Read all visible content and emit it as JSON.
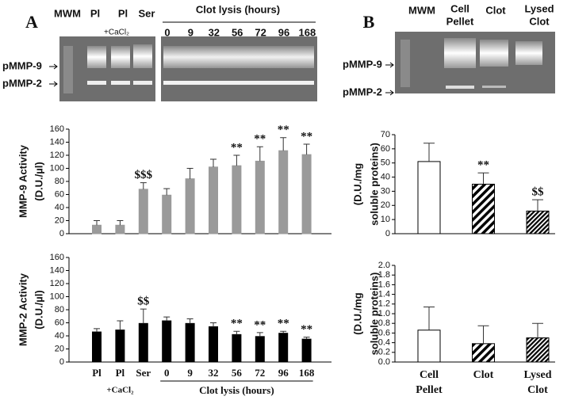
{
  "gels": {
    "panel_a": {
      "letter": "A",
      "lanes": [
        "MWM",
        "Pl",
        "Pl",
        "Ser"
      ],
      "treatment": "+CaCl₂",
      "group": "Clot lysis (hours)",
      "hours": [
        "0",
        "9",
        "32",
        "56",
        "72",
        "96",
        "168"
      ],
      "bands": [
        "pMMP-9",
        "pMMP-2"
      ]
    },
    "panel_b": {
      "letter": "B",
      "lanes": [
        "MWM",
        [
          "Cell",
          "Pellet"
        ],
        "Clot",
        [
          "Lysed",
          "Clot"
        ]
      ],
      "bands": [
        "pMMP-9",
        "pMMP-2"
      ]
    }
  },
  "chart_data": [
    {
      "type": "bar",
      "ylabel": [
        "MMP-9 Activity",
        "(D.U./µl)"
      ],
      "categories": [
        null,
        null,
        null,
        null,
        null,
        null,
        null,
        null,
        null,
        null
      ],
      "values": [
        13,
        13,
        68,
        59,
        84,
        102,
        104,
        111,
        127,
        121
      ],
      "errors": [
        7,
        7,
        10,
        10,
        16,
        12,
        16,
        22,
        20,
        16
      ],
      "markers": [
        null,
        null,
        "$$$",
        null,
        null,
        null,
        "**",
        "**",
        "**",
        "**"
      ],
      "color": "#9a9a9a",
      "ylim": [
        0,
        160
      ],
      "yticks": [
        0,
        20,
        40,
        60,
        80,
        100,
        120,
        140,
        160
      ]
    },
    {
      "type": "bar",
      "ylabel": [
        "MMP-2 Activity",
        "(D.U./µl)"
      ],
      "categories": [
        "Pl",
        "Pl",
        "Ser",
        "0",
        "9",
        "32",
        "56",
        "72",
        "96",
        "168"
      ],
      "group_labels": [
        "+CaCl₂",
        "Clot lysis (hours)"
      ],
      "values": [
        46,
        49,
        59,
        63,
        59,
        54,
        42,
        39,
        44,
        35
      ],
      "errors": [
        5,
        14,
        22,
        6,
        7,
        6,
        5,
        6,
        3,
        3
      ],
      "markers": [
        null,
        null,
        "$$",
        null,
        null,
        null,
        "**",
        "**",
        "**",
        "**"
      ],
      "color": "#000000",
      "ylim": [
        0,
        160
      ],
      "yticks": [
        0,
        20,
        40,
        60,
        80,
        100,
        120,
        140,
        160
      ]
    },
    {
      "type": "bar",
      "ylabel": [
        "(D.U./mg",
        "soluble proteins)"
      ],
      "categories": [
        null,
        null,
        null
      ],
      "values": [
        51,
        35,
        16
      ],
      "errors": [
        13,
        8,
        8
      ],
      "markers": [
        null,
        "**",
        "$$"
      ],
      "color": "#000000",
      "bar_fills": [
        "solid-white",
        "hatched",
        "hatched-dense"
      ],
      "ylim": [
        0,
        70
      ],
      "yticks": [
        0,
        10,
        20,
        30,
        40,
        50,
        60,
        70
      ]
    },
    {
      "type": "bar",
      "ylabel": [
        "(D.U./mg",
        "soluble proteins)"
      ],
      "categories": [
        [
          "Cell",
          "Pellet"
        ],
        [
          "Clot"
        ],
        [
          "Lysed",
          "Clot"
        ]
      ],
      "values": [
        0.66,
        0.38,
        0.5
      ],
      "errors": [
        0.48,
        0.37,
        0.3
      ],
      "color": "#000000",
      "bar_fills": [
        "solid-white",
        "hatched",
        "hatched-dense"
      ],
      "ylim": [
        0,
        2.0
      ],
      "yticks": [
        {
          "value": 0,
          "label": "0.0"
        },
        {
          "value": 0.2,
          "label": "0.2"
        },
        {
          "value": 0.4,
          "label": "0.4"
        },
        {
          "value": 0.6,
          "label": "0.6"
        },
        {
          "value": 0.8,
          "label": "0.8"
        },
        {
          "value": 1.0,
          "label": "1.0"
        },
        {
          "value": 1.2,
          "label": "1.2"
        },
        {
          "value": 1.4,
          "label": "1.4"
        },
        {
          "value": 1.6,
          "label": "1.6"
        },
        {
          "value": 1.8,
          "label": "1.8"
        },
        {
          "value": 2.0,
          "label": "2.0"
        }
      ]
    }
  ]
}
